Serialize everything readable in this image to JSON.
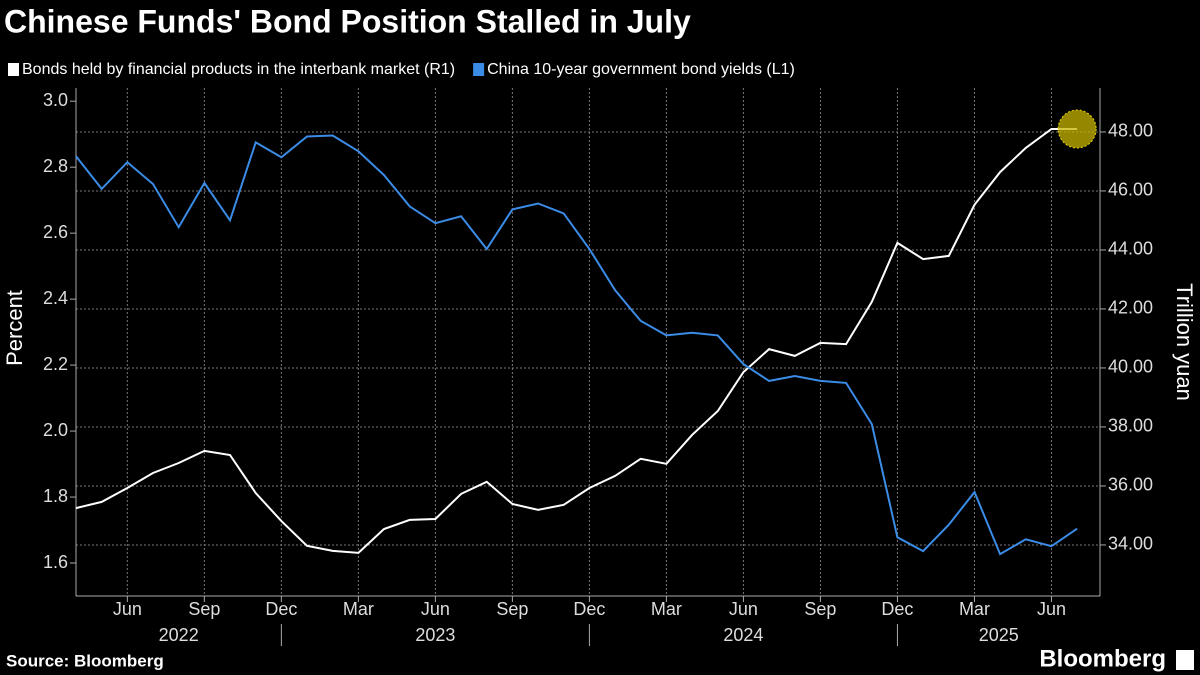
{
  "chart_data": {
    "type": "line",
    "title": "Chinese Funds' Bond Position Stalled in July",
    "source": "Source: Bloomberg",
    "brand": "Bloomberg",
    "ylabel": "Percent",
    "y2label": "Trillion yuan",
    "categories": [
      null,
      null,
      "Jun",
      null,
      null,
      "Sep",
      null,
      null,
      "Dec",
      null,
      null,
      "Mar",
      null,
      null,
      "Jun",
      null,
      null,
      "Sep",
      null,
      null,
      "Dec",
      null,
      null,
      "Mar",
      null,
      null,
      "Jun",
      null,
      null,
      "Sep",
      null,
      null,
      "Dec",
      null,
      null,
      "Mar",
      null,
      null,
      "Jun",
      null
    ],
    "year_groups": [
      {
        "label": "2022",
        "months": 9
      },
      {
        "label": "2023",
        "months": 12
      },
      {
        "label": "2024",
        "months": 12
      },
      {
        "label": "2025",
        "months": 7
      }
    ],
    "series": [
      {
        "name": "Bonds held by financial products in the interbank market (R1)",
        "color": "#ffffff",
        "axis": "y2",
        "values": [
          35.25,
          35.46,
          35.93,
          36.44,
          36.78,
          37.19,
          37.05,
          35.76,
          34.81,
          33.97,
          33.8,
          33.73,
          34.54,
          34.85,
          34.88,
          35.73,
          36.14,
          35.39,
          35.19,
          35.36,
          35.93,
          36.34,
          36.92,
          36.75,
          37.73,
          38.54,
          39.86,
          40.64,
          40.41,
          40.85,
          40.81,
          42.24,
          44.24,
          43.69,
          43.8,
          45.53,
          46.64,
          47.46,
          48.1,
          48.1
        ]
      },
      {
        "name": "China 10-year government bond yields (L1)",
        "color": "#3b8ce6",
        "values": [
          2.833,
          2.734,
          2.815,
          2.749,
          2.618,
          2.752,
          2.639,
          2.875,
          2.83,
          2.893,
          2.896,
          2.848,
          2.776,
          2.681,
          2.63,
          2.651,
          2.552,
          2.672,
          2.69,
          2.66,
          2.552,
          2.427,
          2.334,
          2.29,
          2.298,
          2.29,
          2.203,
          2.152,
          2.167,
          2.152,
          2.146,
          2.021,
          1.678,
          1.636,
          1.716,
          1.815,
          1.627,
          1.672,
          1.651,
          1.704
        ]
      }
    ],
    "ylim": [
      1.5,
      3.04
    ],
    "yticks": [
      1.6,
      1.8,
      {
        "value": 2,
        "label": "2.0"
      },
      2.2,
      2.4,
      2.6,
      2.8,
      {
        "value": 3,
        "label": "3.0"
      }
    ],
    "y2lim": [
      32.27,
      49.49
    ],
    "y2ticks": [
      {
        "value": 34,
        "label": "34.00"
      },
      {
        "value": 36,
        "label": "36.00"
      },
      {
        "value": 38,
        "label": "38.00"
      },
      {
        "value": 40,
        "label": "40.00"
      },
      {
        "value": 42,
        "label": "42.00"
      },
      {
        "value": 44,
        "label": "44.00"
      },
      {
        "value": 46,
        "label": "46.00"
      },
      {
        "value": 48,
        "label": "48.00"
      }
    ],
    "grid": true
  }
}
